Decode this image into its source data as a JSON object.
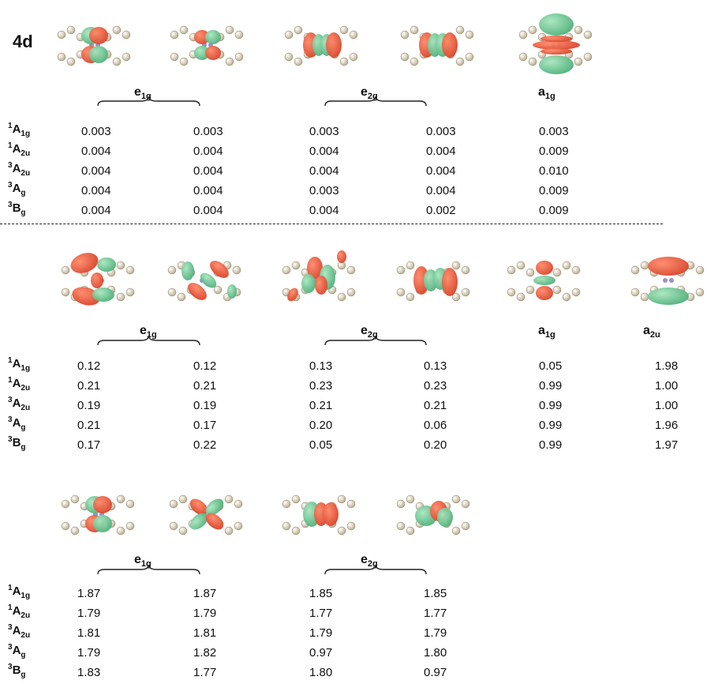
{
  "shell_label": "4d",
  "colors": {
    "red": "#d9452b",
    "green": "#4fb07a",
    "atom": "#e8dcb8"
  },
  "states": [
    {
      "sup": "1",
      "base": "A",
      "sub": "1g"
    },
    {
      "sup": "1",
      "base": "A",
      "sub": "2u"
    },
    {
      "sup": "3",
      "base": "A",
      "sub": "2u"
    },
    {
      "sup": "3",
      "base": "A",
      "sub": "g"
    },
    {
      "sup": "3",
      "base": "B",
      "sub": "g"
    }
  ],
  "sections": [
    {
      "symmetry_labels": [
        {
          "base": "e",
          "sub": "1g"
        },
        {
          "base": "e",
          "sub": "2g"
        },
        {
          "base": "a",
          "sub": "1g"
        }
      ],
      "rows": [
        [
          "0.003",
          "0.003",
          "0.003",
          "0.003",
          "0.003"
        ],
        [
          "0.004",
          "0.004",
          "0.004",
          "0.004",
          "0.009"
        ],
        [
          "0.004",
          "0.004",
          "0.004",
          "0.004",
          "0.010"
        ],
        [
          "0.004",
          "0.004",
          "0.003",
          "0.004",
          "0.009"
        ],
        [
          "0.004",
          "0.004",
          "0.004",
          "0.002",
          "0.009"
        ]
      ]
    },
    {
      "symmetry_labels": [
        {
          "base": "e",
          "sub": "1g"
        },
        {
          "base": "e",
          "sub": "2g"
        },
        {
          "base": "a",
          "sub": "1g"
        },
        {
          "base": "a",
          "sub": "2u"
        }
      ],
      "rows": [
        [
          "0.12",
          "0.12",
          "0.13",
          "0.13",
          "0.05",
          "1.98"
        ],
        [
          "0.21",
          "0.21",
          "0.23",
          "0.23",
          "0.99",
          "1.00"
        ],
        [
          "0.19",
          "0.19",
          "0.21",
          "0.21",
          "0.99",
          "1.00"
        ],
        [
          "0.21",
          "0.17",
          "0.20",
          "0.06",
          "0.99",
          "1.96"
        ],
        [
          "0.17",
          "0.22",
          "0.05",
          "0.20",
          "0.99",
          "1.97"
        ]
      ]
    },
    {
      "symmetry_labels": [
        {
          "base": "e",
          "sub": "1g"
        },
        {
          "base": "e",
          "sub": "2g"
        }
      ],
      "rows": [
        [
          "1.87",
          "1.87",
          "1.85",
          "1.85"
        ],
        [
          "1.79",
          "1.79",
          "1.77",
          "1.77"
        ],
        [
          "1.81",
          "1.81",
          "1.79",
          "1.79"
        ],
        [
          "1.79",
          "1.82",
          "0.97",
          "1.80"
        ],
        [
          "1.83",
          "1.77",
          "1.80",
          "0.97"
        ]
      ]
    }
  ]
}
